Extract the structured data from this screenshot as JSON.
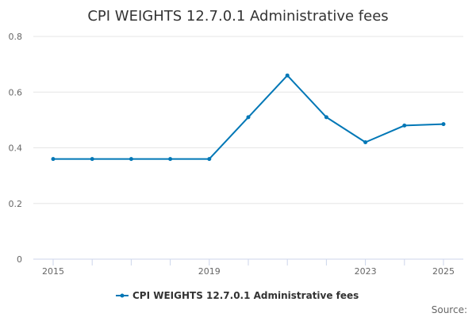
{
  "chart_data": {
    "type": "line",
    "title": "CPI WEIGHTS 12.7.0.1 Administrative fees",
    "xlabel": "",
    "ylabel": "",
    "x": [
      2015,
      2016,
      2017,
      2018,
      2019,
      2020,
      2021,
      2022,
      2023,
      2024,
      2025
    ],
    "xlim": [
      2015,
      2025
    ],
    "xticks": [
      2015,
      2019,
      2023,
      2025
    ],
    "ylim": [
      0,
      0.8
    ],
    "yticks": [
      "0",
      "0.2",
      "0.4",
      "0.6",
      "0.8"
    ],
    "grid": "horizontal",
    "legend_position": "bottom",
    "series": [
      {
        "name": "CPI WEIGHTS 12.7.0.1 Administrative fees",
        "color": "#0077b6",
        "values": [
          0.36,
          0.36,
          0.36,
          0.36,
          0.36,
          0.51,
          0.66,
          0.51,
          0.42,
          0.48,
          0.485
        ]
      }
    ],
    "source": "Source:"
  }
}
